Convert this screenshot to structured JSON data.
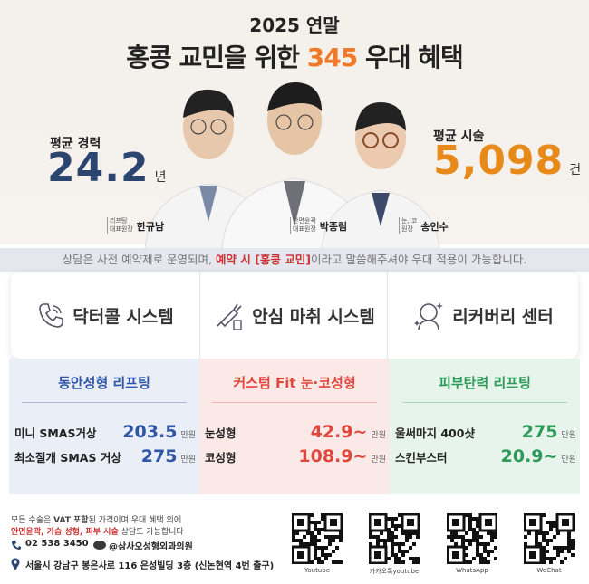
{
  "header": {
    "year": "2025 연말",
    "title": [
      "홍콩 교민을 위한 ",
      "345",
      " 우대 혜택"
    ]
  },
  "stats": [
    {
      "label": "평균 경력",
      "value": "24.2",
      "unit": "년"
    },
    {
      "label": "평균 시술",
      "value": "5,098",
      "unit": "건"
    }
  ],
  "doctors": [
    {
      "specialty": "리프팅",
      "role": "대표원장",
      "name": "한규남"
    },
    {
      "specialty": "안면윤곽",
      "role": "대표원장",
      "name": "박종림"
    },
    {
      "specialty": "눈, 코",
      "role": "원장",
      "name": "송인수"
    }
  ],
  "notice": [
    "상담은 사전 예약제로 운영되며, ",
    "예약 시 [홍콩 교민]",
    "이라고 말씀해주셔야 우대 적용이 가능합니다."
  ],
  "features": [
    "닥터콜 시스템",
    "안심 마취 시스템",
    "리커버리 센터"
  ],
  "columns": [
    {
      "title": "동안성형 리프팅",
      "items": [
        {
          "name": "미니 SMAS거상",
          "price": "203.5",
          "unit": "만원"
        },
        {
          "name": "최소절개 SMAS 거상",
          "price": "275",
          "unit": "만원"
        }
      ]
    },
    {
      "title": "커스텀 Fit 눈·코성형",
      "items": [
        {
          "name": "눈성형",
          "price": "42.9~",
          "unit": "만원"
        },
        {
          "name": "코성형",
          "price": "108.9~",
          "unit": "만원"
        }
      ]
    },
    {
      "title": "피부탄력 리프팅",
      "items": [
        {
          "name": "울써마지 400샷",
          "price": "275",
          "unit": "만원"
        },
        {
          "name": "스킨부스터",
          "price": "20.9~",
          "unit": "만원"
        }
      ]
    }
  ],
  "footer": {
    "line1": [
      "모든 수술은 ",
      "VAT 포함",
      "된 가격이며 우대 혜택 외에"
    ],
    "line2": [
      "안면윤곽, 가슴 성형, 피부 시술",
      " 상담도 가능합니다"
    ],
    "phone": "02 538 3450",
    "kakao": "@삼사오성형외과의원",
    "address": "서울시 강남구 봉은사로 116 은성빌딩 3층 (신논현역 4번 출구)",
    "qr": [
      "Youtube",
      "카카오톡youtube",
      "WhatsApp",
      "WeChat"
    ]
  }
}
